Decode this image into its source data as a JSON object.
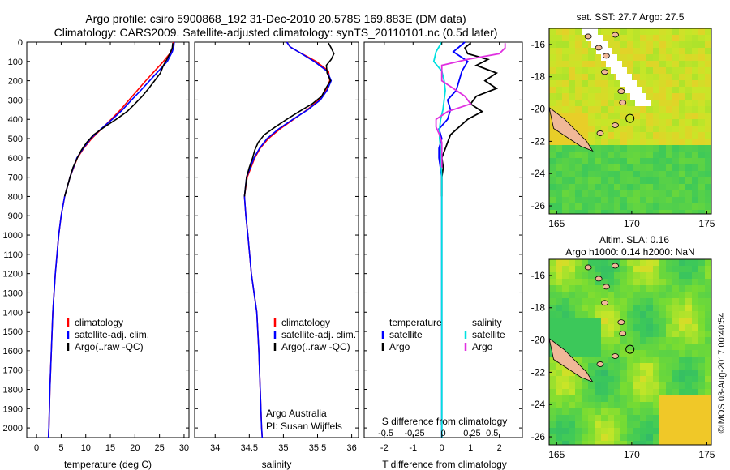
{
  "title": {
    "line1": "Argo profile: csiro 5900868_192 31-Dec-2010 20.578S 169.883E (DM data)",
    "line2": "Climatology: CARS2009. Satellite-adjusted climatology: synTS_20110101.nc (0.5d later)"
  },
  "colors": {
    "climatology": "#ff0000",
    "satellite": "#0000ff",
    "argo": "#000000",
    "sal_satellite": "#00e0e0",
    "sal_argo": "#e030e0"
  },
  "depth_axis": {
    "min": 0,
    "max": 2050,
    "ticks": [
      0,
      100,
      200,
      300,
      400,
      500,
      600,
      700,
      800,
      900,
      1000,
      1100,
      1200,
      1300,
      1400,
      1500,
      1600,
      1700,
      1800,
      1900,
      2000
    ]
  },
  "chart_data": [
    {
      "id": "temperature",
      "type": "line",
      "xlabel": "temperature (deg C)",
      "xlim": [
        -2,
        31
      ],
      "xticks": [
        0,
        5,
        10,
        15,
        20,
        25,
        30
      ],
      "legend": [
        "climatology",
        "satellite-adj. clim.",
        "Argo(..raw -QC)"
      ],
      "series": [
        {
          "name": "climatology",
          "depth": [
            0,
            25,
            50,
            100,
            150,
            200,
            250,
            300,
            350,
            400,
            450,
            500,
            550,
            600,
            700,
            800,
            900,
            1000,
            1200,
            1400,
            1600,
            1800,
            2000,
            2050
          ],
          "values": [
            27.8,
            27.7,
            27.4,
            25.8,
            24.0,
            22.2,
            20.5,
            18.8,
            17.1,
            15.2,
            13.2,
            11.2,
            9.6,
            8.3,
            6.8,
            5.7,
            5.0,
            4.5,
            3.8,
            3.3,
            3.0,
            2.7,
            2.5,
            2.4
          ]
        },
        {
          "name": "satellite-adj. clim.",
          "depth": [
            0,
            25,
            50,
            100,
            150,
            200,
            250,
            300,
            350,
            400,
            450,
            500,
            550,
            600,
            700,
            800,
            900,
            1000,
            1200,
            1400,
            1600,
            1800,
            2000,
            2050
          ],
          "values": [
            28.0,
            27.9,
            27.6,
            26.6,
            24.8,
            23.0,
            21.2,
            19.3,
            17.5,
            15.4,
            13.1,
            11.0,
            9.5,
            8.2,
            6.8,
            5.7,
            5.0,
            4.5,
            3.8,
            3.3,
            3.0,
            2.7,
            2.5,
            2.4
          ]
        },
        {
          "name": "Argo(..raw -QC)",
          "depth": [
            5,
            30,
            60,
            90,
            120,
            160,
            200,
            240,
            280,
            320,
            360,
            400,
            440,
            480,
            520,
            560,
            600,
            650,
            700,
            800
          ],
          "values": [
            27.7,
            27.6,
            27.1,
            26.5,
            25.8,
            25.2,
            24.0,
            22.8,
            21.5,
            20.0,
            18.4,
            16.2,
            13.8,
            11.6,
            10.2,
            9.1,
            8.3,
            7.4,
            6.8,
            5.7
          ]
        }
      ]
    },
    {
      "id": "salinity",
      "type": "line",
      "xlabel": "salinity",
      "xlim": [
        33.7,
        36.1
      ],
      "xticks": [
        34,
        34.5,
        35,
        35.5,
        36
      ],
      "legend": [
        "climatology",
        "satellite-adj. clim.",
        "Argo(..raw -QC)"
      ],
      "annotations": [
        "Argo Australia",
        "PI: Susan Wijffels"
      ],
      "series": [
        {
          "name": "climatology",
          "depth": [
            0,
            25,
            50,
            100,
            150,
            200,
            250,
            300,
            350,
            400,
            450,
            500,
            550,
            600,
            700,
            800,
            900,
            1000,
            1200,
            1300,
            1400,
            1600,
            1800,
            2000,
            2050
          ],
          "values": [
            35.05,
            35.1,
            35.22,
            35.48,
            35.66,
            35.68,
            35.62,
            35.52,
            35.35,
            35.15,
            34.95,
            34.78,
            34.66,
            34.58,
            34.47,
            34.43,
            34.45,
            34.48,
            34.53,
            34.57,
            34.61,
            34.64,
            34.66,
            34.68,
            34.69
          ]
        },
        {
          "name": "satellite-adj. clim.",
          "depth": [
            0,
            25,
            50,
            100,
            150,
            200,
            250,
            300,
            350,
            400,
            450,
            500,
            550,
            600,
            700,
            800,
            900,
            1000,
            1200,
            1300,
            1400,
            1600,
            1800,
            2000,
            2050
          ],
          "values": [
            35.05,
            35.1,
            35.22,
            35.45,
            35.64,
            35.7,
            35.64,
            35.54,
            35.36,
            35.14,
            34.93,
            34.76,
            34.65,
            34.57,
            34.46,
            34.43,
            34.45,
            34.48,
            34.53,
            34.57,
            34.61,
            34.64,
            34.66,
            34.68,
            34.69
          ]
        },
        {
          "name": "Argo(..raw -QC)",
          "depth": [
            5,
            30,
            60,
            90,
            120,
            160,
            200,
            240,
            280,
            320,
            360,
            400,
            440,
            480,
            520,
            560,
            600,
            650,
            700,
            800
          ],
          "values": [
            35.66,
            35.7,
            35.74,
            35.7,
            35.63,
            35.64,
            35.69,
            35.62,
            35.56,
            35.42,
            35.23,
            35.05,
            34.88,
            34.72,
            34.63,
            34.58,
            34.55,
            34.5,
            34.46,
            34.43
          ]
        }
      ]
    },
    {
      "id": "difference",
      "type": "line",
      "xlabel": "T difference from climatology",
      "xlabel_top": "S difference from climatology",
      "xlim": [
        -2.7,
        2.8
      ],
      "xticks": [
        -2,
        -1,
        0,
        1,
        2
      ],
      "top_ticks_label": [
        -0.5,
        -0.25,
        0,
        0.25,
        0.5
      ],
      "legend_temperature": [
        "temperature",
        "satellite",
        "Argo"
      ],
      "legend_salinity": [
        "salinity",
        "satellite",
        "Argo"
      ],
      "series": [
        {
          "name": "T satellite",
          "depth": [
            0,
            50,
            100,
            150,
            200,
            250,
            300,
            350,
            400,
            450,
            500,
            550,
            600,
            700,
            800,
            1000,
            1400,
            2000,
            2050
          ],
          "values": [
            0.8,
            0.4,
            0.9,
            0.7,
            0.6,
            0.5,
            0.2,
            0.3,
            0.2,
            -0.1,
            0.0,
            -0.1,
            -0.1,
            0.0,
            0.0,
            0.0,
            0.0,
            0.0,
            0.0
          ]
        },
        {
          "name": "T Argo",
          "depth": [
            5,
            30,
            60,
            90,
            120,
            160,
            200,
            240,
            280,
            320,
            360,
            400,
            440,
            480,
            520,
            560,
            600,
            650,
            700,
            800
          ],
          "values": [
            1.0,
            0.8,
            0.9,
            1.6,
            1.2,
            1.9,
            1.5,
            1.9,
            1.2,
            1.0,
            1.4,
            0.9,
            0.6,
            0.3,
            0.2,
            0.1,
            0.0,
            0.05,
            0.0,
            0.0
          ]
        },
        {
          "name": "S satellite",
          "depth": [
            0,
            50,
            100,
            150,
            200,
            250,
            300,
            350,
            400,
            450,
            500,
            550,
            600,
            700,
            800,
            1000,
            1400,
            2000,
            2050
          ],
          "values": [
            0.0,
            -0.05,
            -0.07,
            0.0,
            0.02,
            0.03,
            0.02,
            0.01,
            -0.01,
            -0.02,
            -0.02,
            -0.01,
            -0.01,
            0.0,
            0.0,
            0.0,
            0.0,
            0.0,
            0.0
          ]
        },
        {
          "name": "S Argo",
          "depth": [
            5,
            30,
            60,
            90,
            120,
            160,
            200,
            240,
            280,
            320,
            360,
            400,
            440,
            480,
            520,
            560,
            600,
            650
          ],
          "values": [
            0.55,
            0.55,
            0.5,
            0.22,
            0.0,
            0.0,
            0.0,
            0.1,
            0.2,
            0.25,
            0.05,
            -0.05,
            -0.05,
            -0.02,
            0.0,
            0.0,
            0.0,
            0.0
          ]
        }
      ]
    },
    {
      "id": "sst_map",
      "type": "heatmap",
      "title": "sat. SST: 27.7 Argo: 27.5",
      "xlim": [
        164.5,
        175.3
      ],
      "ylim": [
        -26.5,
        -15
      ],
      "xticks": [
        165,
        170,
        175
      ],
      "yticks": [
        -16,
        -18,
        -20,
        -22,
        -24,
        -26
      ],
      "argo_position": {
        "lon": 169.883,
        "lat": -20.578
      }
    },
    {
      "id": "sla_map",
      "type": "heatmap",
      "title": "Altim. SLA: 0.16",
      "subtitle": "Argo h1000: 0.14 h2000: NaN",
      "xlim": [
        164.5,
        175.3
      ],
      "ylim": [
        -26.5,
        -15
      ],
      "xticks": [
        165,
        170,
        175
      ],
      "yticks": [
        -16,
        -18,
        -20,
        -22,
        -24,
        -26
      ],
      "argo_position": {
        "lon": 169.883,
        "lat": -20.578
      }
    }
  ],
  "side_text": "©IMOS 03-Aug-2017 00:40:54"
}
